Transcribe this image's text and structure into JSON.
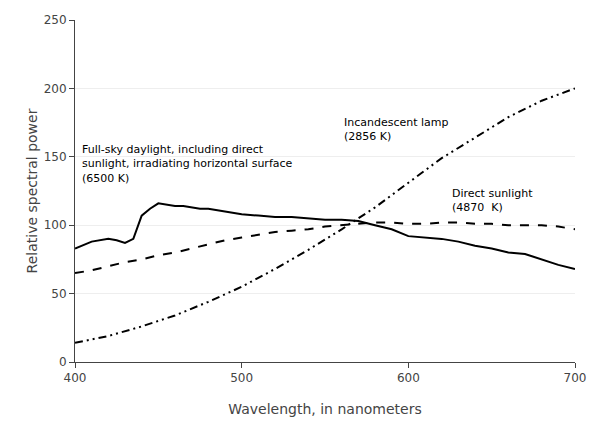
{
  "chart_data": {
    "type": "line",
    "xlabel": "Wavelength, in nanometers",
    "ylabel": "Relative spectral power",
    "xlim": [
      400,
      700
    ],
    "ylim": [
      0,
      250
    ],
    "xticks": [
      400,
      500,
      600,
      700
    ],
    "yticks": [
      0,
      50,
      100,
      150,
      200,
      250
    ],
    "grid": "y",
    "series": [
      {
        "color": "#000000",
        "line_style": "dashdotdot",
        "x": [
          400,
          420,
          440,
          460,
          480,
          500,
          520,
          540,
          560,
          580,
          600,
          620,
          640,
          660,
          680,
          700
        ],
        "values": [
          14,
          19,
          26,
          34,
          44,
          55,
          68,
          82,
          97,
          113,
          131,
          149,
          164,
          179,
          191,
          200
        ]
      },
      {
        "color": "#000000",
        "line_style": "dashed",
        "x": [
          400,
          410,
          420,
          430,
          440,
          450,
          460,
          470,
          480,
          490,
          500,
          510,
          520,
          530,
          540,
          550,
          560,
          570,
          580,
          590,
          600,
          610,
          620,
          630,
          640,
          650,
          660,
          670,
          680,
          690,
          700
        ],
        "values": [
          65,
          67,
          70,
          73,
          75,
          78,
          80,
          83,
          86,
          89,
          91,
          93,
          95,
          96,
          97,
          99,
          100,
          101,
          102,
          102,
          101,
          101,
          102,
          102,
          101,
          101,
          100,
          100,
          100,
          99,
          97
        ]
      },
      {
        "color": "#000000",
        "line_style": "solid",
        "x": [
          400,
          410,
          420,
          425,
          430,
          435,
          440,
          445,
          450,
          455,
          460,
          465,
          470,
          475,
          480,
          485,
          490,
          495,
          500,
          510,
          520,
          530,
          540,
          550,
          560,
          570,
          580,
          590,
          600,
          610,
          620,
          630,
          640,
          650,
          660,
          670,
          680,
          690,
          700
        ],
        "values": [
          83,
          88,
          90,
          89,
          87,
          90,
          107,
          112,
          116,
          115,
          114,
          114,
          113,
          112,
          112,
          111,
          110,
          109,
          108,
          107,
          106,
          106,
          105,
          104,
          104,
          103,
          100,
          97,
          92,
          91,
          90,
          88,
          85,
          83,
          80,
          79,
          75,
          71,
          68
        ]
      }
    ],
    "annotations": [
      {
        "text": "Incandescent lamp\n(2856 K)",
        "x": 560,
        "y": 170
      },
      {
        "text": "Direct sunlight\n(4870  K)",
        "x": 625,
        "y": 118
      },
      {
        "text": "Full-sky daylight, including direct\nsunlight, irradiating horizontal surface\n(6500 K)",
        "x": 403,
        "y": 145
      }
    ]
  }
}
